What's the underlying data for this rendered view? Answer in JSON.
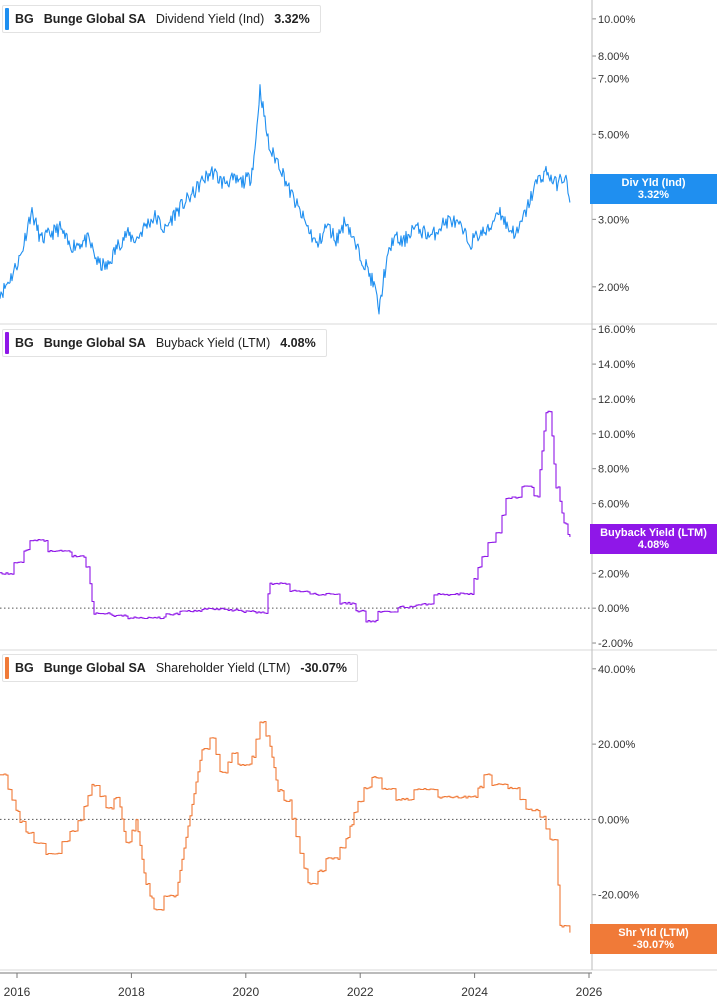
{
  "x_axis": {
    "tick_labels": [
      "2016",
      "2018",
      "2020",
      "2022",
      "2024",
      "2026"
    ]
  },
  "chart_data": [
    {
      "type": "line",
      "ticker": "BG",
      "company": "Bunge Global SA",
      "metric": "Dividend Yield (Ind)",
      "value_label": "3.32%",
      "tag": {
        "line1": "Div Yld (Ind)",
        "line2": "3.32%"
      },
      "color": "#1f8ff0",
      "scale": "log",
      "ylim": [
        1.6,
        11.2
      ],
      "yticks": [
        2,
        3,
        5,
        7,
        8,
        10
      ],
      "ytick_labels": [
        "2.00%",
        "3.00%",
        "5.00%",
        "7.00%",
        "8.00%",
        "10.00%"
      ],
      "zero_line": false,
      "x": [
        "2015-10",
        "2015-12",
        "2016-02",
        "2016-04",
        "2016-06",
        "2016-08",
        "2016-10",
        "2016-12",
        "2017-02",
        "2017-04",
        "2017-06",
        "2017-08",
        "2017-10",
        "2017-12",
        "2018-02",
        "2018-04",
        "2018-06",
        "2018-08",
        "2018-10",
        "2018-12",
        "2019-02",
        "2019-04",
        "2019-06",
        "2019-08",
        "2019-10",
        "2019-12",
        "2020-02",
        "2020-03",
        "2020-04",
        "2020-05",
        "2020-06",
        "2020-08",
        "2020-10",
        "2020-12",
        "2021-02",
        "2021-04",
        "2021-06",
        "2021-08",
        "2021-10",
        "2021-12",
        "2022-02",
        "2022-04",
        "2022-05",
        "2022-06",
        "2022-08",
        "2022-10",
        "2022-12",
        "2023-02",
        "2023-04",
        "2023-06",
        "2023-08",
        "2023-10",
        "2023-12",
        "2024-02",
        "2024-04",
        "2024-06",
        "2024-08",
        "2024-10",
        "2024-12",
        "2025-02",
        "2025-04",
        "2025-06",
        "2025-08",
        "2025-09"
      ],
      "y": [
        1.95,
        2.15,
        2.45,
        3.15,
        2.65,
        2.75,
        2.85,
        2.55,
        2.6,
        2.65,
        2.3,
        2.25,
        2.55,
        2.75,
        2.65,
        2.9,
        3.05,
        2.8,
        3.1,
        3.3,
        3.5,
        3.8,
        4.0,
        3.75,
        3.8,
        3.75,
        3.85,
        4.6,
        6.6,
        5.4,
        4.55,
        4.2,
        3.6,
        3.2,
        2.85,
        2.55,
        2.9,
        2.65,
        3.0,
        2.55,
        2.3,
        2.0,
        1.72,
        2.15,
        2.7,
        2.6,
        2.85,
        2.8,
        2.7,
        2.9,
        3.0,
        2.85,
        2.6,
        2.75,
        2.8,
        3.2,
        2.85,
        2.75,
        3.2,
        3.75,
        4.0,
        3.7,
        3.9,
        3.32
      ]
    },
    {
      "type": "line",
      "ticker": "BG",
      "company": "Bunge Global SA",
      "metric": "Buyback Yield (LTM)",
      "value_label": "4.08%",
      "tag": {
        "line1": "Buyback Yield (LTM)",
        "line2": "4.08%"
      },
      "color": "#8f17e8",
      "scale": "linear",
      "ylim": [
        -2.4,
        16.3
      ],
      "yticks": [
        -2,
        0,
        2,
        4,
        6,
        8,
        10,
        12,
        14,
        16
      ],
      "ytick_labels": [
        "-2.00%",
        "0.00%",
        "2.00%",
        "4.00%",
        "6.00%",
        "8.00%",
        "10.00%",
        "12.00%",
        "14.00%",
        "16.00%"
      ],
      "zero_line": true,
      "x": [
        "2015-10",
        "2015-12",
        "2016-02",
        "2016-04",
        "2016-06",
        "2016-08",
        "2016-10",
        "2016-12",
        "2017-02",
        "2017-04",
        "2017-05",
        "2017-08",
        "2017-12",
        "2018-03",
        "2018-08",
        "2019-01",
        "2019-06",
        "2019-12",
        "2020-05",
        "2020-06",
        "2020-10",
        "2021-01",
        "2021-06",
        "2021-08",
        "2021-11",
        "2022-02",
        "2022-06",
        "2022-10",
        "2023-02",
        "2023-05",
        "2023-08",
        "2023-12",
        "2024-02",
        "2024-04",
        "2024-06",
        "2024-08",
        "2024-10",
        "2024-12",
        "2025-02",
        "2025-04",
        "2025-05",
        "2025-06",
        "2025-07",
        "2025-08",
        "2025-09"
      ],
      "y": [
        2.0,
        2.5,
        3.1,
        4.0,
        3.5,
        3.2,
        3.5,
        3.0,
        2.9,
        2.2,
        -0.3,
        -0.4,
        -0.55,
        -0.6,
        -0.35,
        -0.05,
        -0.05,
        -0.2,
        -0.3,
        1.4,
        1.0,
        0.8,
        0.8,
        0.3,
        0.2,
        -0.8,
        0.1,
        0.05,
        0.3,
        0.9,
        0.8,
        0.9,
        2.6,
        3.9,
        4.5,
        6.8,
        6.5,
        7.5,
        6.0,
        11.3,
        10.8,
        7.0,
        6.0,
        4.5,
        4.08
      ]
    },
    {
      "type": "line",
      "ticker": "BG",
      "company": "Bunge Global SA",
      "metric": "Shareholder Yield (LTM)",
      "value_label": "-30.07%",
      "tag": {
        "line1": "Shr Yld (LTM)",
        "line2": "-30.07%"
      },
      "color": "#f07a38",
      "scale": "linear",
      "ylim": [
        -40,
        45
      ],
      "yticks": [
        -20,
        0,
        20,
        40
      ],
      "ytick_labels": [
        "-20.00%",
        "0.00%",
        "20.00%",
        "40.00%"
      ],
      "zero_line": true,
      "x": [
        "2015-10",
        "2015-12",
        "2016-02",
        "2016-05",
        "2016-08",
        "2016-11",
        "2017-02",
        "2017-05",
        "2017-08",
        "2017-10",
        "2017-12",
        "2018-02",
        "2018-04",
        "2018-06",
        "2018-08",
        "2018-10",
        "2018-12",
        "2019-02",
        "2019-04",
        "2019-06",
        "2019-08",
        "2019-10",
        "2019-12",
        "2020-02",
        "2020-04",
        "2020-06",
        "2020-08",
        "2020-10",
        "2020-12",
        "2021-02",
        "2021-04",
        "2021-06",
        "2021-08",
        "2021-10",
        "2021-12",
        "2022-02",
        "2022-04",
        "2022-06",
        "2022-09",
        "2022-12",
        "2023-03",
        "2023-06",
        "2023-09",
        "2023-12",
        "2024-03",
        "2024-06",
        "2024-09",
        "2024-12",
        "2025-03",
        "2025-05",
        "2025-06",
        "2025-07",
        "2025-08",
        "2025-09"
      ],
      "y": [
        12.0,
        5.0,
        -2.0,
        -7.0,
        -10.0,
        -5.0,
        0.0,
        10.0,
        2.0,
        7.5,
        -7.0,
        0.0,
        -17.0,
        -25.0,
        -20.0,
        -22.0,
        -8.0,
        6.0,
        20.0,
        22.0,
        10.0,
        18.0,
        13.0,
        15.0,
        26.0,
        20.0,
        6.0,
        4.0,
        -7.0,
        -17.0,
        -14.0,
        -10.0,
        -9.0,
        -5.0,
        3.0,
        9.0,
        12.0,
        7.0,
        5.0,
        8.0,
        9.0,
        5.0,
        6.0,
        4.0,
        12.0,
        7.0,
        9.0,
        2.0,
        0.5,
        -6.0,
        -5.0,
        -30.5,
        -28.0,
        -30.07
      ]
    }
  ]
}
